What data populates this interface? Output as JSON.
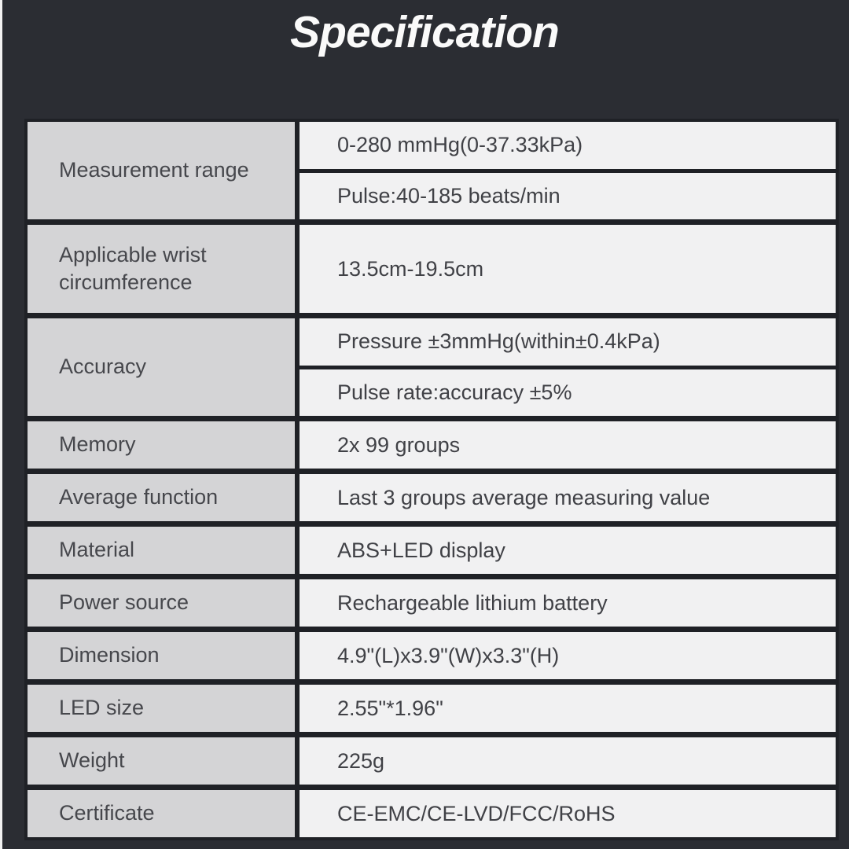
{
  "page": {
    "title": "Specification"
  },
  "colors": {
    "page_bg": "#2b2d33",
    "gutter": "#1f2126",
    "label_bg": "#d4d4d6",
    "value_bg": "#f1f1f2"
  },
  "table": {
    "rows": [
      {
        "label": "Measurement range",
        "values": [
          "0-280 mmHg(0-37.33kPa)",
          "Pulse:40-185 beats/min"
        ]
      },
      {
        "label": "Applicable wrist circumference",
        "values": [
          "13.5cm-19.5cm"
        ]
      },
      {
        "label": "Accuracy",
        "values": [
          "Pressure ±3mmHg(within±0.4kPa)",
          "Pulse rate:accuracy ±5%"
        ]
      },
      {
        "label": "Memory",
        "values": [
          "2x 99 groups"
        ]
      },
      {
        "label": "Average function",
        "values": [
          "Last 3 groups average measuring value"
        ]
      },
      {
        "label": "Material",
        "values": [
          "ABS+LED display"
        ]
      },
      {
        "label": "Power source",
        "values": [
          "Rechargeable lithium battery"
        ]
      },
      {
        "label": "Dimension",
        "values": [
          "4.9\"(L)x3.9\"(W)x3.3\"(H)"
        ]
      },
      {
        "label": "LED size",
        "values": [
          "2.55\"*1.96\""
        ]
      },
      {
        "label": "Weight",
        "values": [
          "225g"
        ]
      },
      {
        "label": "Certificate",
        "values": [
          "CE-EMC/CE-LVD/FCC/RoHS"
        ]
      }
    ]
  }
}
